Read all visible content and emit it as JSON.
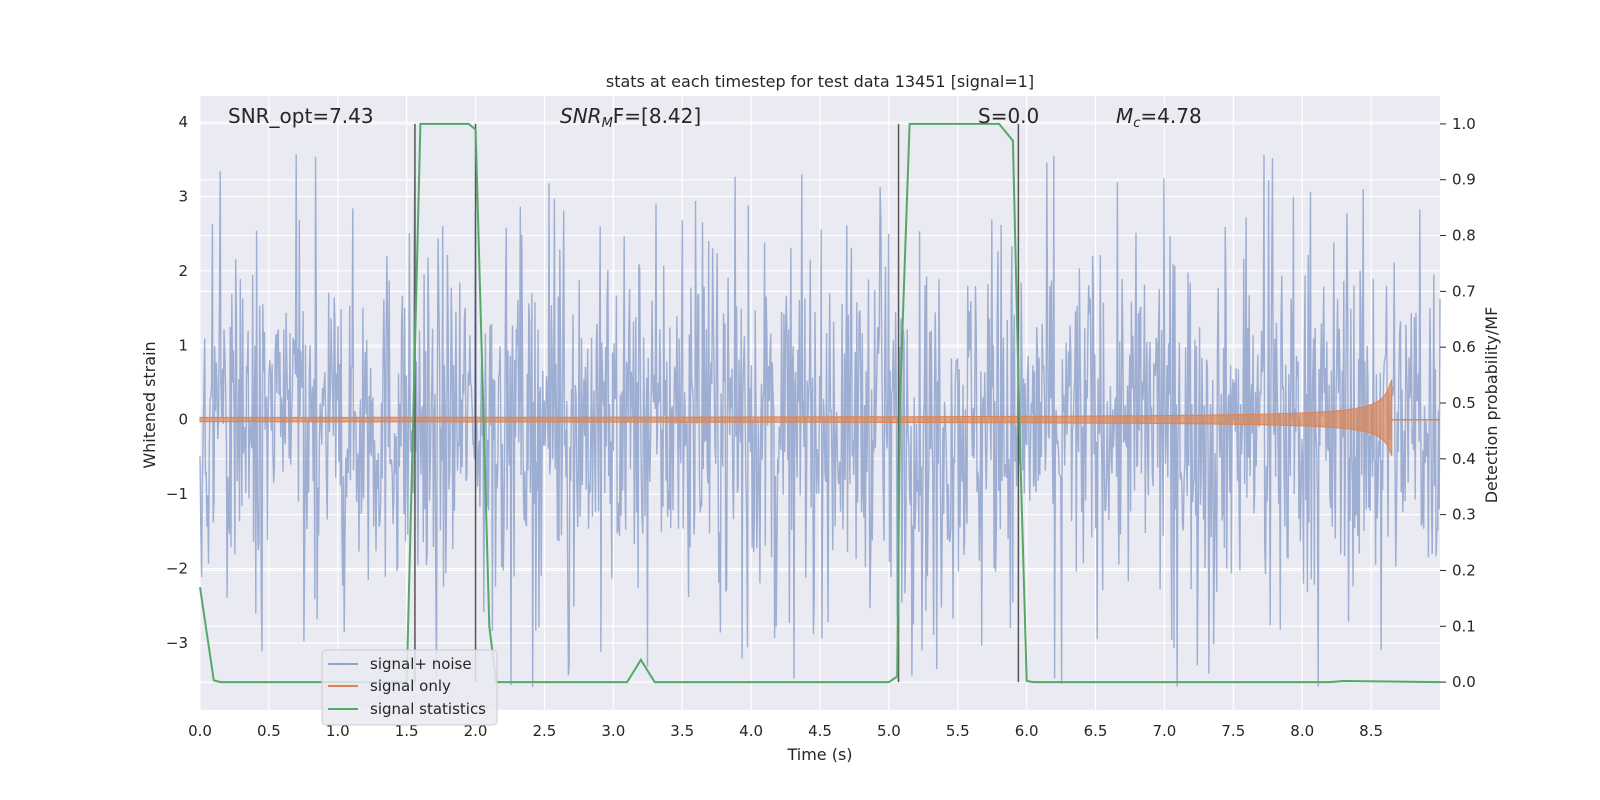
{
  "chart_data": {
    "type": "line",
    "title": "stats at each timestep for test data 13451 [signal=1]",
    "xlabel": "Time (s)",
    "ylabel_left": "Whitened strain",
    "ylabel_right": "Detection probability/MF",
    "xlim": [
      0.0,
      9.0
    ],
    "ylim_left": [
      -3.9,
      4.35
    ],
    "ylim_right": [
      -0.05,
      1.05
    ],
    "xticks": [
      "0.0",
      "0.5",
      "1.0",
      "1.5",
      "2.0",
      "2.5",
      "3.0",
      "3.5",
      "4.0",
      "4.5",
      "5.0",
      "5.5",
      "6.0",
      "6.5",
      "7.0",
      "7.5",
      "8.0",
      "8.5"
    ],
    "yticks_left": [
      "−3",
      "−2",
      "−1",
      "0",
      "1",
      "2",
      "3",
      "4"
    ],
    "yticks_right": [
      "0.0",
      "0.1",
      "0.2",
      "0.3",
      "0.4",
      "0.5",
      "0.6",
      "0.7",
      "0.8",
      "0.9",
      "1.0"
    ],
    "grid": true,
    "legend_placement": "lower-left",
    "annotations": {
      "snr_opt": "SNR_opt=7.43",
      "snr_mf_main": "SNR",
      "snr_mf_sub": "M",
      "snr_mf_rest": "F=[8.42]",
      "s_label": "S=0.0",
      "mc_main": "M",
      "mc_sub": "c",
      "mc_rest": "=4.78"
    },
    "series": [
      {
        "name": "signal+ noise",
        "axis": "left",
        "color": "#8fa3cc",
        "description_values": "whitened noise, amplitude roughly ±2.5 with peaks to ±3.6",
        "amplitude_range": [
          -3.6,
          3.6
        ]
      },
      {
        "name": "signal only",
        "axis": "left",
        "color": "#dd8452",
        "chirp_start": 0.0,
        "chirp_end": 8.65,
        "chirp_max_amplitude": 0.6
      },
      {
        "name": "signal statistics",
        "axis": "right",
        "color": "#55a868",
        "x": [
          0.0,
          0.1,
          0.15,
          1.5,
          1.55,
          1.6,
          1.8,
          1.95,
          2.0,
          2.1,
          2.15,
          3.1,
          3.2,
          3.3,
          5.0,
          5.06,
          5.08,
          5.15,
          5.8,
          5.9,
          5.95,
          6.0,
          6.05,
          8.2,
          8.3,
          9.0
        ],
        "values": [
          0.17,
          0.003,
          0.0,
          0.0,
          0.5,
          1.0,
          1.0,
          1.0,
          0.99,
          0.1,
          0.0,
          0.0,
          0.04,
          0.0,
          0.0,
          0.01,
          0.5,
          1.0,
          1.0,
          0.97,
          0.44,
          0.002,
          0.0,
          0.0,
          0.002,
          0.0
        ]
      }
    ],
    "vertical_markers": {
      "color": "#555555",
      "x": [
        1.56,
        2.0,
        5.07,
        5.94
      ]
    }
  }
}
